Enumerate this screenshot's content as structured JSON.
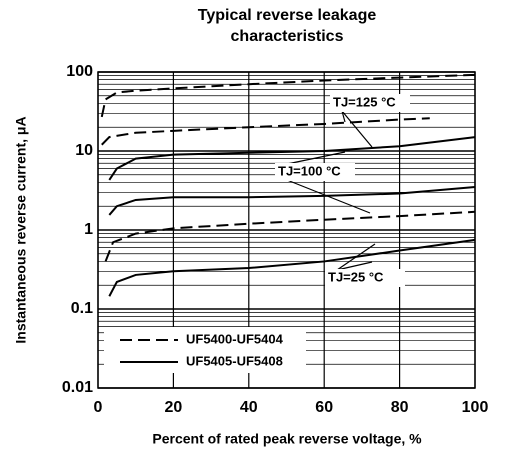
{
  "chart_data": {
    "type": "line",
    "title": [
      "Typical reverse leakage",
      "characteristics"
    ],
    "x_label": "Percent of rated peak reverse voltage, %",
    "y_label": "Instantaneous reverse current, μA",
    "xlim": [
      0,
      100
    ],
    "xticks": [
      0,
      20,
      40,
      60,
      80,
      100
    ],
    "ylim": [
      0.01,
      100
    ],
    "yticks": [
      0.01,
      0.1,
      1,
      10,
      100
    ],
    "y_minor_ticks": [
      0.02,
      0.03,
      0.04,
      0.05,
      0.06,
      0.07,
      0.08,
      0.09,
      0.2,
      0.3,
      0.4,
      0.5,
      0.6,
      0.7,
      0.8,
      0.9,
      2,
      3,
      4,
      5,
      6,
      7,
      8,
      9,
      20,
      30,
      40,
      50,
      60,
      70,
      80,
      90
    ],
    "y_scale": "log",
    "grid": true,
    "legend": "lower left",
    "color": "#000000",
    "series": [
      {
        "name": "UF5400-UF5404",
        "style": "dashed",
        "curves": [
          {
            "x": [
              1,
              2,
              5,
              10,
              20,
              40,
              60,
              80,
              100
            ],
            "values": [
              27,
              45,
              55,
              58,
              62,
              70,
              78,
              85,
              92
            ]
          },
          {
            "x": [
              1,
              3,
              10,
              20,
              40,
              60,
              80,
              88
            ],
            "values": [
              12,
              15,
              17,
              18,
              20,
              22,
              25,
              26
            ]
          },
          {
            "x": [
              2,
              4,
              10,
              20,
              40,
              60,
              80,
              100
            ],
            "values": [
              0.4,
              0.7,
              0.9,
              1.05,
              1.2,
              1.35,
              1.5,
              1.7
            ]
          }
        ]
      },
      {
        "name": "UF5405-UF5408",
        "style": "solid",
        "curves": [
          {
            "x": [
              3,
              5,
              10,
              20,
              40,
              60,
              80,
              100
            ],
            "values": [
              4.3,
              6,
              8,
              9,
              9.5,
              10,
              11.5,
              15
            ]
          },
          {
            "x": [
              3,
              5,
              10,
              20,
              40,
              60,
              80,
              100
            ],
            "values": [
              1.55,
              2.0,
              2.4,
              2.6,
              2.6,
              2.7,
              2.9,
              3.5
            ]
          },
          {
            "x": [
              3,
              5,
              10,
              20,
              40,
              60,
              80,
              100
            ],
            "values": [
              0.145,
              0.22,
              0.27,
              0.3,
              0.33,
              0.4,
              0.55,
              0.75
            ]
          }
        ]
      }
    ],
    "annotations": [
      "TJ=125 °C",
      "TJ=100 °C",
      "TJ=25 °C"
    ]
  }
}
